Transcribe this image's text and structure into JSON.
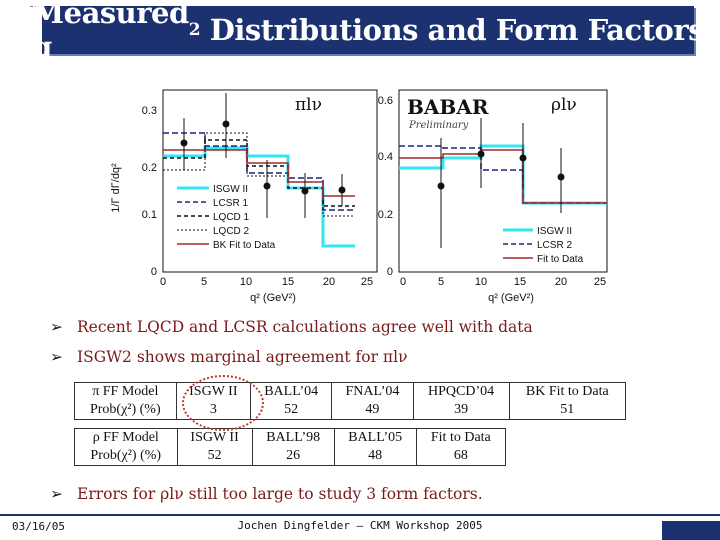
{
  "slide": {
    "title_main": "Measured q",
    "title_sup": "2",
    "title_rest": " Distributions and Form Factors"
  },
  "plot_left": {
    "label": "πlν",
    "ylabel": "1/Γ dΓ/dq²",
    "xlabel": "q² (GeV²)",
    "yticks": [
      "0",
      "0.1",
      "0.2",
      "0.3"
    ],
    "xticks": [
      "0",
      "5",
      "10",
      "15",
      "20",
      "25"
    ],
    "legend": [
      "ISGW II",
      "LCSR 1",
      "LQCD 1",
      "LQCD 2",
      "BK Fit to Data"
    ]
  },
  "plot_right": {
    "label": "ρlν",
    "babar": "BABAR",
    "preliminary": "Preliminary",
    "yticks": [
      "0",
      "0.2",
      "0.4",
      "0.6"
    ],
    "xticks": [
      "0",
      "5",
      "10",
      "15",
      "20",
      "25"
    ],
    "xlabel": "q² (GeV²)",
    "legend": [
      "ISGW II",
      "LCSR 2",
      "Fit to Data"
    ]
  },
  "colors": {
    "title_bg": "#1c3170",
    "cyan": "#33e6f0",
    "navy": "#1a237e",
    "dark_red": "#a52a2a",
    "bullet_text": "#7a1a1a"
  },
  "bullets": [
    "Recent LQCD and LCSR calculations agree well with data",
    "ISGW2 shows marginal agreement for πlν",
    "Errors for ρlν still too large to study 3 form factors."
  ],
  "table_pi": {
    "row1": [
      "π FF Model",
      "ISGW II",
      "BALL’04",
      "FNAL’04",
      "HPQCD’04",
      "BK Fit to Data"
    ],
    "row2": [
      "Prob(χ²) (%)",
      "3",
      "52",
      "49",
      "39",
      "51"
    ]
  },
  "table_rho": {
    "row1": [
      "ρ FF Model",
      "ISGW II",
      "BALL’98",
      "BALL’05",
      "Fit to Data"
    ],
    "row2": [
      "Prob(χ²) (%)",
      "52",
      "26",
      "48",
      "68"
    ]
  },
  "footer": {
    "date": "03/16/05",
    "author": "Jochen Dingfelder – CKM Workshop 2005"
  }
}
